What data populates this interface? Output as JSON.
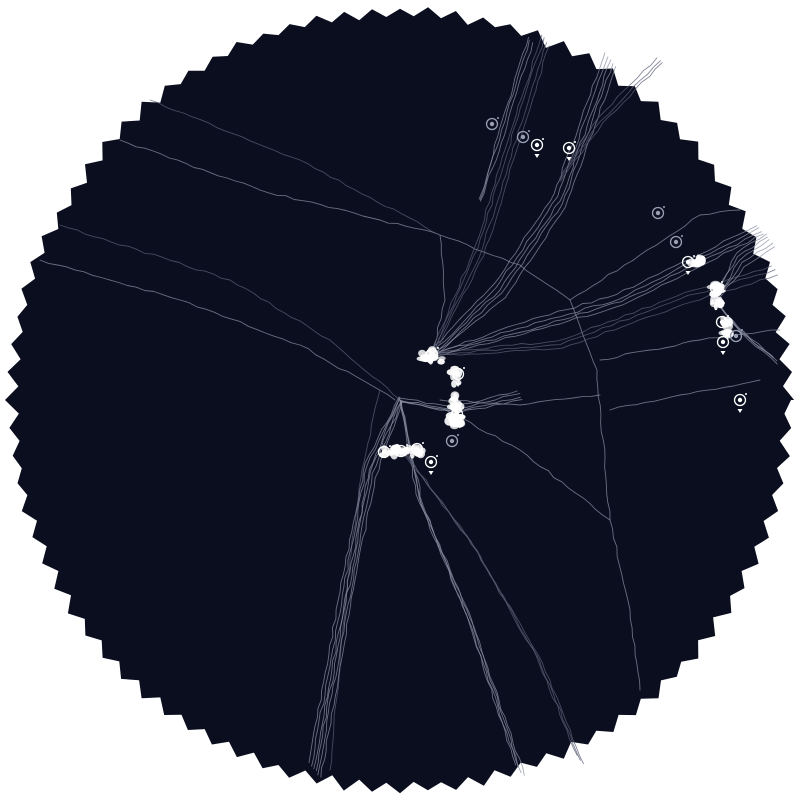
{
  "palette": {
    "background": "#ffffff",
    "disc": "#0a0e1f",
    "route": "#8a8fa3",
    "route_dim": "#5a5f75",
    "node": "#ffffff",
    "node_dim": "#9aa0b4"
  },
  "icons": {
    "node": "location-ring-icon",
    "direction": "triangle-down-icon"
  }
}
